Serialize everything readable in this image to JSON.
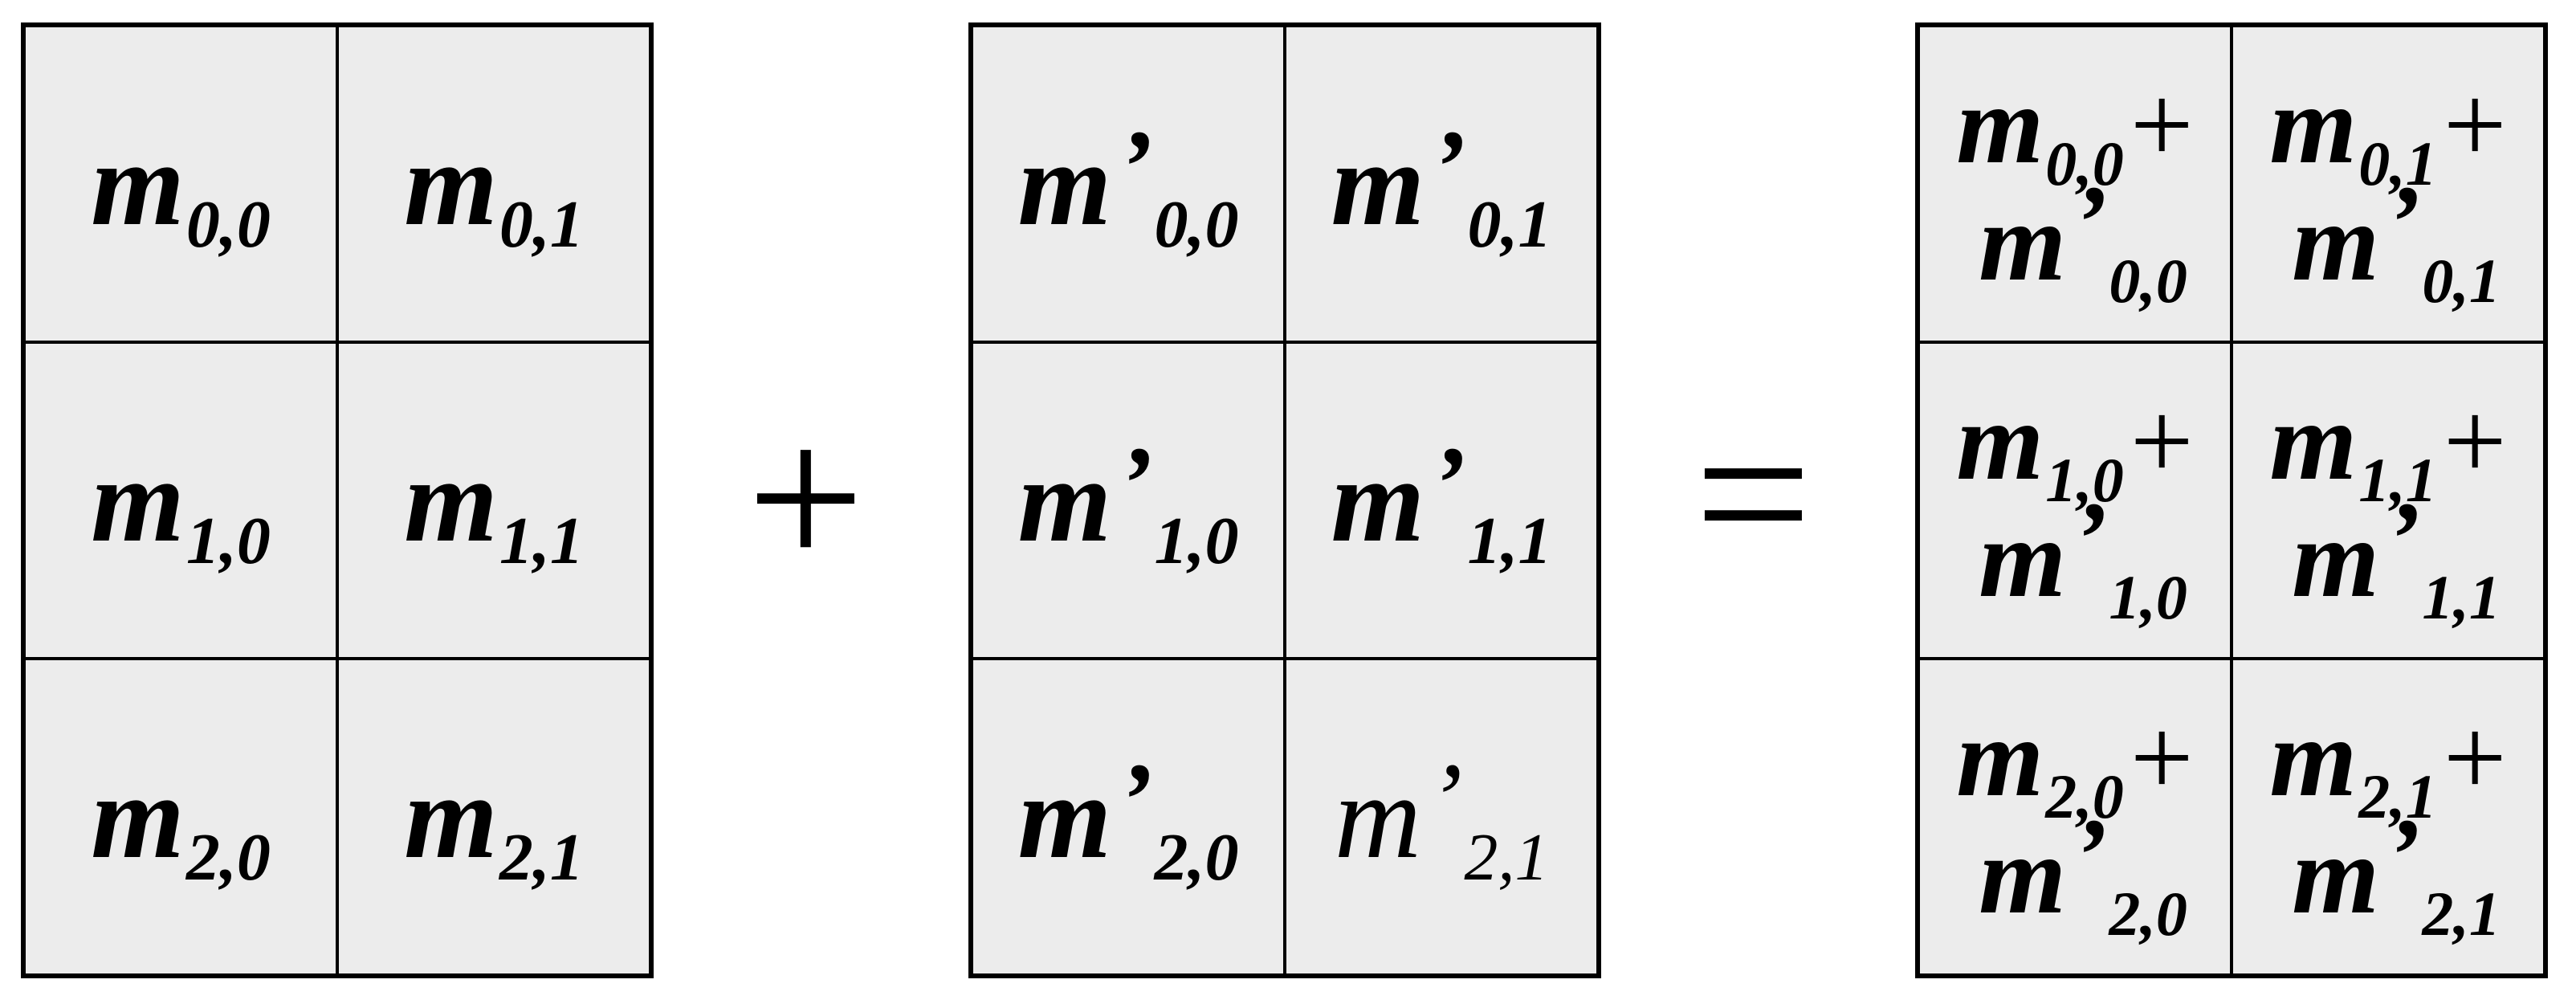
{
  "matrix_a": {
    "cells": [
      [
        {
          "base": "m",
          "sub": "0,0"
        },
        {
          "base": "m",
          "sub": "0,1"
        }
      ],
      [
        {
          "base": "m",
          "sub": "1,0"
        },
        {
          "base": "m",
          "sub": "1,1"
        }
      ],
      [
        {
          "base": "m",
          "sub": "2,0"
        },
        {
          "base": "m",
          "sub": "2,1"
        }
      ]
    ]
  },
  "operator_plus": "+",
  "matrix_b": {
    "prime": "’",
    "cells": [
      [
        {
          "base": "m",
          "sub": "0,0"
        },
        {
          "base": "m",
          "sub": "0,1"
        }
      ],
      [
        {
          "base": "m",
          "sub": "1,0"
        },
        {
          "base": "m",
          "sub": "1,1"
        }
      ],
      [
        {
          "base": "m",
          "sub": "2,0"
        },
        {
          "base": "m",
          "sub": "2,1"
        }
      ]
    ]
  },
  "operator_equals": "=",
  "matrix_c": {
    "plus": "+",
    "prime": "’",
    "cells": [
      [
        {
          "base": "m",
          "sub": "0,0"
        },
        {
          "base": "m",
          "sub": "0,1"
        }
      ],
      [
        {
          "base": "m",
          "sub": "1,0"
        },
        {
          "base": "m",
          "sub": "1,1"
        }
      ],
      [
        {
          "base": "m",
          "sub": "2,0"
        },
        {
          "base": "m",
          "sub": "2,1"
        }
      ]
    ]
  }
}
